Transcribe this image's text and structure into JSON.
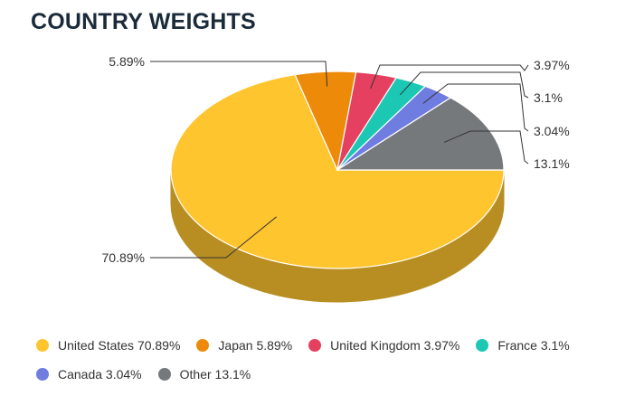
{
  "page": {
    "title": "COUNTRY WEIGHTS"
  },
  "chart_data": {
    "type": "pie",
    "title": "COUNTRY WEIGHTS",
    "three_d": true,
    "slices": [
      {
        "label": "United States",
        "value": 70.89,
        "display": "70.89%",
        "legend": "United States 70.89%",
        "color": "#ffc52f"
      },
      {
        "label": "Japan",
        "value": 5.89,
        "display": "5.89%",
        "legend": "Japan 5.89%",
        "color": "#ee8a0a"
      },
      {
        "label": "United Kingdom",
        "value": 3.97,
        "display": "3.97%",
        "legend": "United Kingdom 3.97%",
        "color": "#e5405f"
      },
      {
        "label": "France",
        "value": 3.1,
        "display": "3.1%",
        "legend": "France 3.1%",
        "color": "#1cc8b4"
      },
      {
        "label": "Canada",
        "value": 3.04,
        "display": "3.04%",
        "legend": "Canada 3.04%",
        "color": "#6f7ce0"
      },
      {
        "label": "Other",
        "value": 13.1,
        "display": "13.1%",
        "legend": "Other 13.1%",
        "color": "#76797c"
      }
    ],
    "legend_placement": "bottom"
  }
}
